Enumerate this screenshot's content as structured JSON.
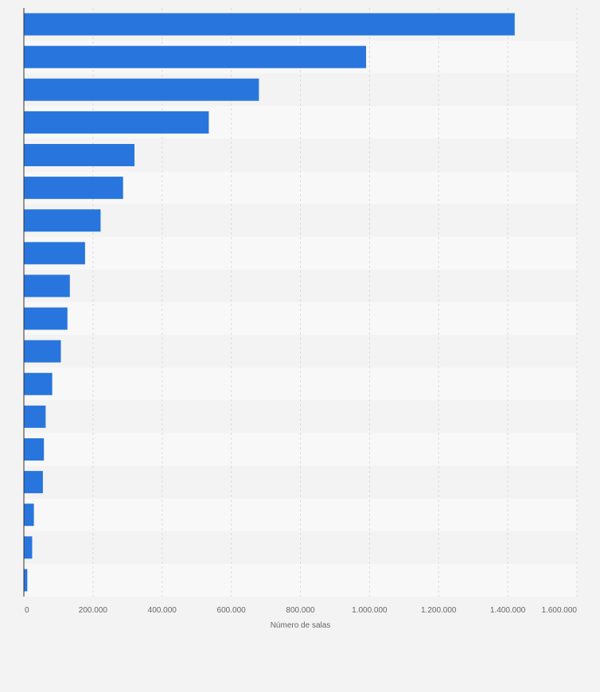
{
  "chart_data": {
    "type": "bar",
    "orientation": "horizontal",
    "title": "",
    "xlabel": "Número de salas",
    "ylabel": "",
    "xlim": [
      0,
      1600000
    ],
    "x_ticks": [
      0,
      200000,
      400000,
      600000,
      800000,
      1000000,
      1200000,
      1400000,
      1600000
    ],
    "x_tick_labels": [
      "0",
      "200.000",
      "400.000",
      "600.000",
      "800.000",
      "1.000.000",
      "1.200.000",
      "1.400.000",
      "1.600.000"
    ],
    "categories": [
      "",
      "",
      "",
      "",
      "",
      "",
      "",
      "",
      "",
      "",
      "",
      "",
      "",
      "",
      "",
      "",
      "",
      ""
    ],
    "values": [
      1420000,
      990000,
      680000,
      535000,
      320000,
      287000,
      222000,
      177000,
      133000,
      126000,
      107000,
      82000,
      63000,
      58000,
      55000,
      29000,
      24000,
      10000
    ],
    "grid": true,
    "legend": "none",
    "colors": {
      "bar": "#2876dd",
      "background": "#f3f3f3",
      "band_dark": "#f3f3f3",
      "band_light": "#f8f8f8",
      "grid": "#dcdcdc",
      "axis": "#333333",
      "text": "#666666"
    }
  }
}
